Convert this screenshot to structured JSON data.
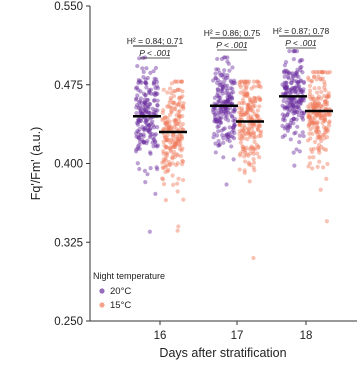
{
  "chart_data": {
    "type": "scatter",
    "title": "",
    "xlabel": "Days after stratification",
    "ylabel": "Fq'/Fm' (a.u.)",
    "ylim": [
      0.25,
      0.55
    ],
    "yticks": [
      0.25,
      0.325,
      0.4,
      0.475,
      0.55
    ],
    "ytick_labels": [
      "0.250",
      "0.325",
      "0.400",
      "0.475",
      "0.550"
    ],
    "categories": [
      "16",
      "17",
      "18"
    ],
    "grid": false,
    "legend": {
      "title": "Night temperature",
      "placement": "bottom-left",
      "entries": [
        "20°C",
        "15°C"
      ]
    },
    "series": [
      {
        "name": "20°C",
        "color": "#6a2c9e",
        "medians": [
          0.445,
          0.455,
          0.464
        ],
        "point_mean": [
          0.448,
          0.456,
          0.462
        ],
        "point_sd": [
          0.022,
          0.021,
          0.02
        ],
        "point_min": [
          0.335,
          0.38,
          0.398
        ],
        "point_max": [
          0.501,
          0.501,
          0.507
        ],
        "n": 200
      },
      {
        "name": "15°C",
        "color": "#f07a5a",
        "medians": [
          0.43,
          0.44,
          0.45
        ],
        "point_mean": [
          0.43,
          0.44,
          0.447
        ],
        "point_sd": [
          0.024,
          0.025,
          0.022
        ],
        "point_min": [
          0.336,
          0.31,
          0.345
        ],
        "point_max": [
          0.478,
          0.478,
          0.487
        ],
        "n": 200
      }
    ],
    "annotations": [
      {
        "category": "16",
        "h2": "H² = 0.84; 0.71",
        "p": "P < .001"
      },
      {
        "category": "17",
        "h2": "H² = 0.86; 0.75",
        "p": "P < .001"
      },
      {
        "category": "18",
        "h2": "H² = 0.87; 0.78",
        "p": "P < .001"
      }
    ]
  }
}
